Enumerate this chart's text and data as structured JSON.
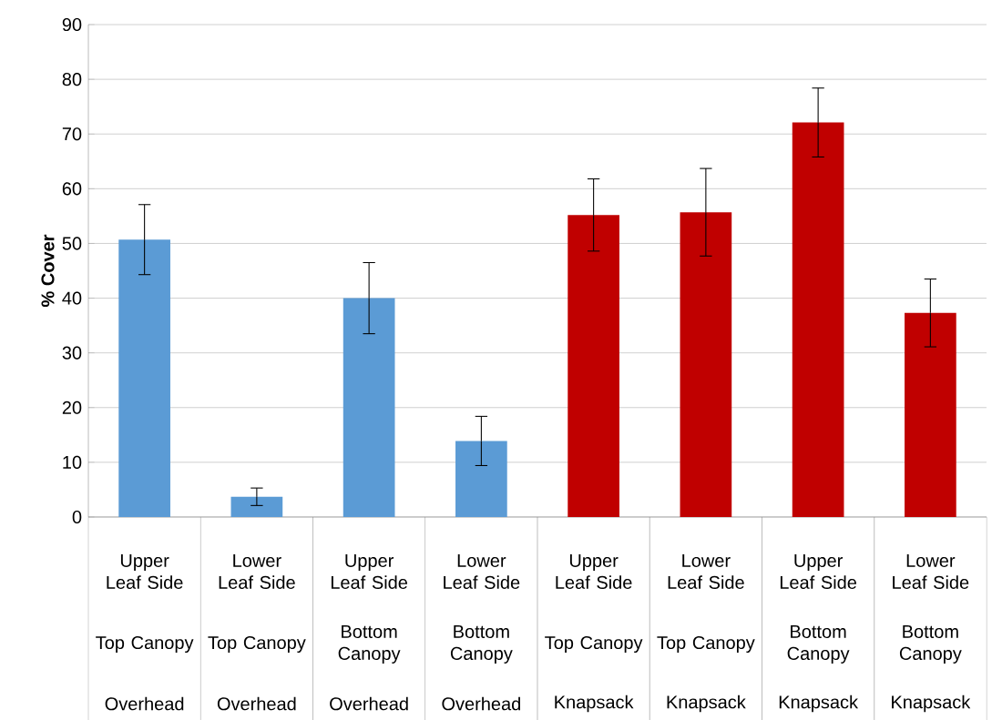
{
  "chart_data": {
    "type": "bar",
    "ylabel": "% Cover",
    "categories": [
      "Upper Leaf Side",
      "Lower Leaf Side",
      "Upper Leaf Side",
      "Lower Leaf Side",
      "Upper Leaf Side",
      "Lower Leaf Side",
      "Upper Leaf Side",
      "Lower Leaf Side"
    ],
    "values": [
      50.7,
      3.7,
      40.0,
      13.9,
      55.2,
      55.7,
      72.1,
      37.3
    ],
    "errors": [
      6.4,
      1.6,
      6.5,
      4.5,
      6.6,
      8.0,
      6.3,
      6.2
    ],
    "colors": [
      "#5b9bd5",
      "#5b9bd5",
      "#5b9bd5",
      "#5b9bd5",
      "#c00000",
      "#c00000",
      "#c00000",
      "#c00000"
    ],
    "annotations": [
      "Top Canopy",
      "Top Canopy",
      "Bottom Canopy",
      "Bottom Canopy",
      "Top Canopy",
      "Top Canopy",
      "Bottom Canopy",
      "Bottom Canopy",
      "Overhead",
      "Overhead",
      "Overhead",
      "Overhead",
      "Knapsack",
      "Knapsack",
      "Knapsack",
      "Knapsack"
    ],
    "ylim": [
      0,
      90
    ],
    "yticks": [
      0,
      10,
      20,
      30,
      40,
      50,
      60,
      70,
      80,
      90
    ],
    "grid": "y"
  }
}
